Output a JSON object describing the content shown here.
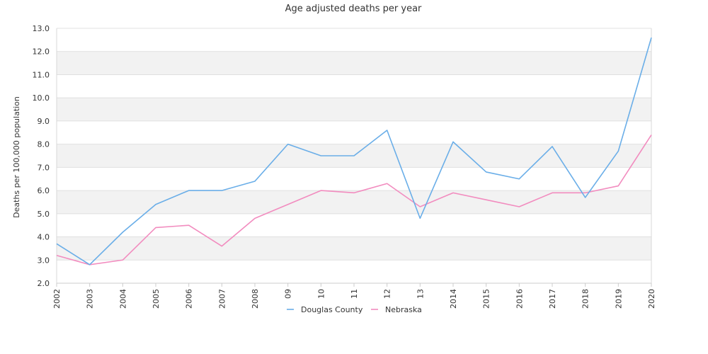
{
  "chart_data": {
    "type": "line",
    "title": "Age adjusted deaths per year",
    "xlabel": "",
    "ylabel": "Deaths per 100,000 population",
    "categories": [
      "2002",
      "2003",
      "2004",
      "2005",
      "2006",
      "2007",
      "2008",
      "09",
      "10",
      "11",
      "12",
      "13",
      "2014",
      "2015",
      "2016",
      "2017",
      "2018",
      "2019",
      "2020"
    ],
    "ylim": [
      2.0,
      13.0
    ],
    "yticks": [
      "2.0",
      "3.0",
      "4.0",
      "5.0",
      "6.0",
      "7.0",
      "8.0",
      "9.0",
      "10.0",
      "11.0",
      "12.0",
      "13.0"
    ],
    "grid": "horizontal-bands",
    "legend_position": "bottom",
    "series": [
      {
        "name": "Douglas County",
        "color": "#6aaee8",
        "values": [
          3.7,
          2.8,
          4.2,
          5.4,
          6.0,
          6.0,
          6.4,
          8.0,
          7.5,
          7.5,
          8.6,
          4.8,
          8.1,
          6.8,
          6.5,
          7.9,
          5.7,
          7.7,
          12.6
        ]
      },
      {
        "name": "Nebraska",
        "color": "#f28cbf",
        "values": [
          3.2,
          2.8,
          3.0,
          4.4,
          4.5,
          3.6,
          4.8,
          5.4,
          6.0,
          5.9,
          6.3,
          5.3,
          5.9,
          5.6,
          5.3,
          5.9,
          5.9,
          6.2,
          8.4
        ]
      }
    ]
  }
}
